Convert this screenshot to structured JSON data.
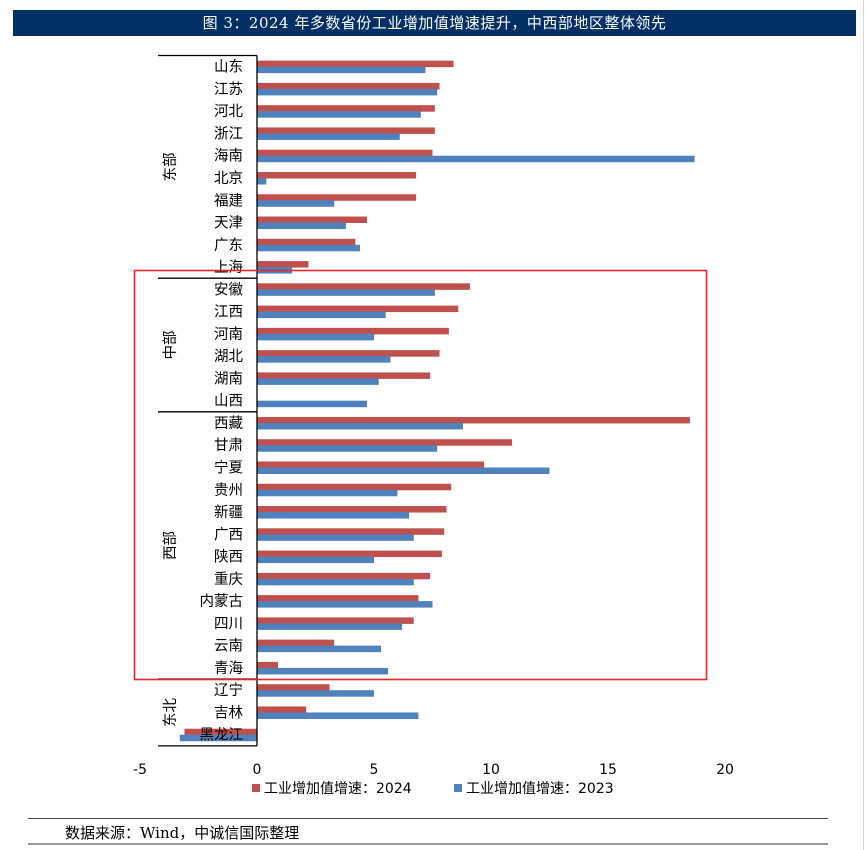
{
  "header": {
    "title": "图 3：2024 年多数省份工业增加值增速提升，中西部地区整体领先"
  },
  "colors": {
    "title_bg": "#022f66",
    "series_2024": "#C0504D",
    "series_2023": "#4F81BD",
    "highlight_box": "#E8262A"
  },
  "legend": {
    "items": [
      {
        "label": "工业增加值增速：2024",
        "color": "#C0504D"
      },
      {
        "label": "工业增加值增速：2023",
        "color": "#4F81BD"
      }
    ]
  },
  "source": {
    "text": "数据来源：Wind，中诚信国际整理"
  },
  "chart_data": {
    "type": "bar",
    "orientation": "horizontal",
    "title": "图 3：2024 年多数省份工业增加值增速提升，中西部地区整体领先",
    "xlabel": "",
    "ylabel": "",
    "xlim": [
      -5,
      20
    ],
    "xticks": [
      -5,
      0,
      5,
      10,
      15,
      20
    ],
    "grid": false,
    "legend_position": "bottom",
    "groups": [
      {
        "name": "东部",
        "start": 0,
        "end": 9
      },
      {
        "name": "中部",
        "start": 10,
        "end": 15
      },
      {
        "name": "西部",
        "start": 16,
        "end": 27
      },
      {
        "name": "东北",
        "start": 28,
        "end": 30
      }
    ],
    "highlight": {
      "label": "中部+西部",
      "from_category": "安徽",
      "to_category": "青海",
      "color": "#E8262A"
    },
    "categories": [
      "山东",
      "江苏",
      "河北",
      "浙江",
      "海南",
      "北京",
      "福建",
      "天津",
      "广东",
      "上海",
      "安徽",
      "江西",
      "河南",
      "湖北",
      "湖南",
      "山西",
      "西藏",
      "甘肃",
      "宁夏",
      "贵州",
      "新疆",
      "广西",
      "陕西",
      "重庆",
      "内蒙古",
      "四川",
      "云南",
      "青海",
      "辽宁",
      "吉林",
      "黑龙江"
    ],
    "series": [
      {
        "name": "工业增加值增速：2024",
        "color": "#C0504D",
        "values": [
          8.4,
          7.8,
          7.6,
          7.6,
          7.5,
          6.8,
          6.8,
          4.7,
          4.2,
          2.2,
          9.1,
          8.6,
          8.2,
          7.8,
          7.4,
          0.0,
          18.5,
          10.9,
          9.7,
          8.3,
          8.1,
          8.0,
          7.9,
          7.4,
          6.9,
          6.7,
          3.3,
          0.9,
          3.1,
          2.1,
          -3.1
        ]
      },
      {
        "name": "工业增加值增速：2023",
        "color": "#4F81BD",
        "values": [
          7.2,
          7.7,
          7.0,
          6.1,
          18.7,
          0.4,
          3.3,
          3.8,
          4.4,
          1.5,
          7.6,
          5.5,
          5.0,
          5.7,
          5.2,
          4.7,
          8.8,
          7.7,
          12.5,
          6.0,
          6.5,
          6.7,
          5.0,
          6.7,
          7.5,
          6.2,
          5.3,
          5.6,
          5.0,
          6.9,
          -3.3
        ]
      }
    ]
  }
}
